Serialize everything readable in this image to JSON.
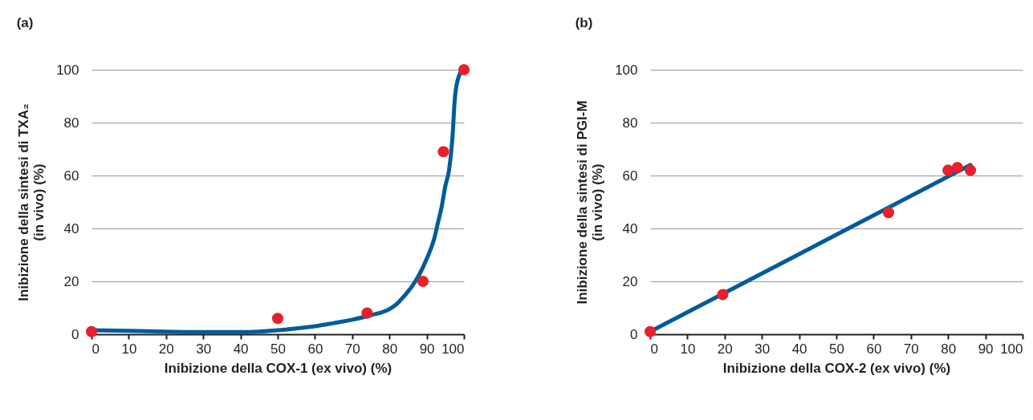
{
  "chart_data": [
    {
      "type": "scatter",
      "title": "(a)",
      "xlabel": "Inibizione della COX-1 (ex vivo) (%)",
      "ylabel": "Inibizione della sintesi di TXA₂\n(in vivo) (%)",
      "xlim": [
        0,
        100
      ],
      "ylim": [
        0,
        100
      ],
      "xticks": [
        0,
        10,
        20,
        30,
        40,
        50,
        60,
        70,
        80,
        90,
        100
      ],
      "yticks": [
        0,
        20,
        40,
        60,
        80,
        100
      ],
      "grid": "y",
      "marker": "circle",
      "series": [
        {
          "type": "line",
          "marker": "none",
          "color": "#005b9a",
          "x": [
            0,
            10,
            20,
            30,
            40,
            45,
            50,
            55,
            60,
            65,
            70,
            75,
            80,
            82,
            84,
            86,
            88,
            90,
            92,
            93,
            94,
            95,
            96,
            97,
            97.5,
            98,
            99.5
          ],
          "values": [
            1.5,
            1.3,
            1,
            0.8,
            0.8,
            1,
            1.5,
            2.2,
            3,
            4.2,
            5.5,
            7.2,
            9.5,
            11.5,
            14.5,
            18,
            22.5,
            28.5,
            36,
            42,
            48,
            56,
            62,
            76,
            88,
            94,
            100
          ]
        },
        {
          "color": "#e8202a",
          "x": [
            0,
            50,
            74,
            89,
            94.5,
            100
          ],
          "values": [
            1,
            6,
            8,
            20,
            69,
            100
          ]
        }
      ]
    },
    {
      "type": "scatter",
      "title": "(b)",
      "xlabel": "Inibizione della COX-2 (ex vivo) (%)",
      "ylabel": "Inibizione della sintesi di PGI-M\n(in vivo) (%)",
      "xlim": [
        0,
        100
      ],
      "ylim": [
        0,
        100
      ],
      "xticks": [
        0,
        10,
        20,
        30,
        40,
        50,
        60,
        70,
        80,
        90,
        100
      ],
      "yticks": [
        0,
        20,
        40,
        60,
        80,
        100
      ],
      "grid": "y",
      "marker": "circle",
      "series": [
        {
          "type": "line",
          "marker": "none",
          "color": "#005b9a",
          "x": [
            0,
            86
          ],
          "values": [
            1,
            64
          ]
        },
        {
          "color": "#e8202a",
          "x": [
            0,
            19.5,
            64,
            80,
            82.5,
            86
          ],
          "values": [
            1,
            15,
            46,
            62,
            63,
            62
          ]
        }
      ]
    }
  ]
}
